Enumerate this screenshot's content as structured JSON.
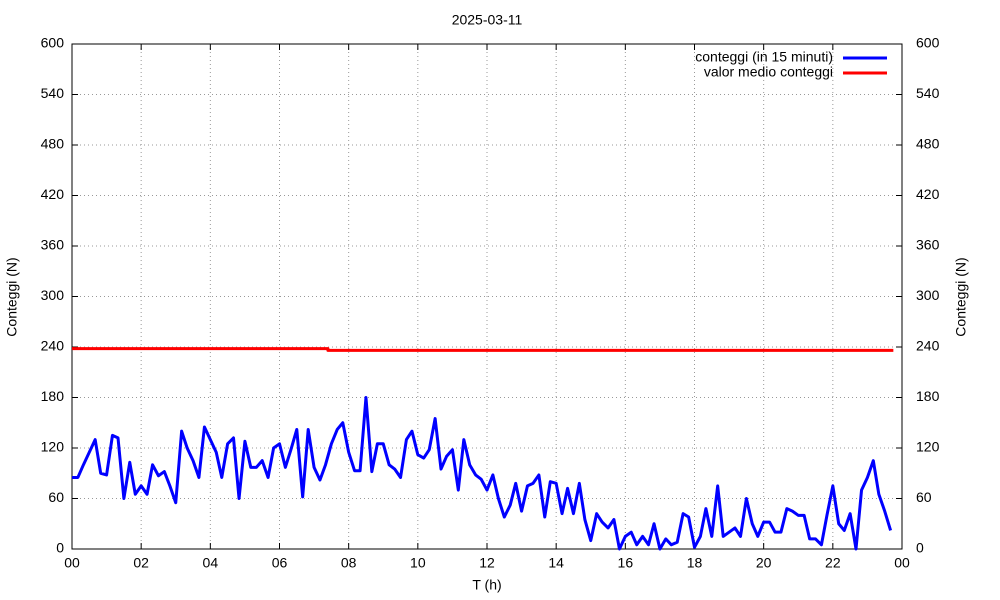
{
  "chart_data": {
    "type": "line",
    "title": "2025-03-11",
    "x_label": "T (h)",
    "y_label": "Conteggi (N)",
    "y2_label": "Conteggi (N)",
    "xlim": [
      0,
      24
    ],
    "xticks": [
      {
        "value": 0,
        "label": "00"
      },
      {
        "value": 2,
        "label": "02"
      },
      {
        "value": 4,
        "label": "04"
      },
      {
        "value": 6,
        "label": "06"
      },
      {
        "value": 8,
        "label": "08"
      },
      10,
      12,
      14,
      16,
      18,
      20,
      22,
      {
        "value": 24,
        "label": "00"
      }
    ],
    "ylim": [
      0,
      600
    ],
    "yticks": [
      0,
      60,
      120,
      180,
      240,
      300,
      360,
      420,
      480,
      540,
      600
    ],
    "y2lim": [
      0,
      600
    ],
    "y2ticks": [
      0,
      60,
      120,
      180,
      240,
      300,
      360,
      420,
      480,
      540,
      600
    ],
    "grid": true,
    "legend": "top-right",
    "series": [
      {
        "name": "conteggi (in 15 minuti)",
        "color": "#0000ff",
        "x": [
          0,
          0.17,
          0.33,
          0.5,
          0.67,
          0.83,
          1,
          1.17,
          1.33,
          1.5,
          1.67,
          1.83,
          2,
          2.17,
          2.33,
          2.5,
          2.67,
          2.83,
          3,
          3.17,
          3.33,
          3.5,
          3.67,
          3.83,
          4,
          4.17,
          4.33,
          4.5,
          4.67,
          4.83,
          5,
          5.17,
          5.33,
          5.5,
          5.67,
          5.83,
          6,
          6.17,
          6.33,
          6.5,
          6.67,
          6.83,
          7,
          7.17,
          7.33,
          7.5,
          7.67,
          7.83,
          8,
          8.17,
          8.33,
          8.5,
          8.67,
          8.83,
          9,
          9.17,
          9.33,
          9.5,
          9.67,
          9.83,
          10,
          10.17,
          10.33,
          10.5,
          10.67,
          10.83,
          11,
          11.17,
          11.33,
          11.5,
          11.67,
          11.83,
          12,
          12.17,
          12.33,
          12.5,
          12.67,
          12.83,
          13,
          13.17,
          13.33,
          13.5,
          13.67,
          13.83,
          14,
          14.17,
          14.33,
          14.5,
          14.67,
          14.83,
          15,
          15.17,
          15.33,
          15.5,
          15.67,
          15.83,
          16,
          16.17,
          16.33,
          16.5,
          16.67,
          16.83,
          17,
          17.17,
          17.33,
          17.5,
          17.67,
          17.83,
          18,
          18.17,
          18.33,
          18.5,
          18.67,
          18.83,
          19,
          19.17,
          19.33,
          19.5,
          19.67,
          19.83,
          20,
          20.17,
          20.33,
          20.5,
          20.67,
          20.83,
          21,
          21.17,
          21.33,
          21.5,
          21.67,
          21.83,
          22,
          22.17,
          22.33,
          22.5,
          22.67,
          22.83,
          23,
          23.17,
          23.33,
          23.5,
          23.67
        ],
        "values": [
          85,
          85,
          100,
          115,
          130,
          90,
          88,
          135,
          132,
          60,
          103,
          65,
          75,
          65,
          100,
          87,
          92,
          75,
          55,
          140,
          120,
          105,
          85,
          145,
          130,
          115,
          85,
          125,
          132,
          60,
          128,
          97,
          97,
          105,
          85,
          120,
          125,
          97,
          118,
          142,
          62,
          142,
          97,
          82,
          100,
          125,
          142,
          150,
          115,
          93,
          93,
          180,
          92,
          125,
          125,
          100,
          95,
          85,
          130,
          140,
          112,
          108,
          118,
          155,
          95,
          110,
          118,
          70,
          130,
          100,
          88,
          83,
          70,
          88,
          60,
          38,
          52,
          78,
          45,
          75,
          78,
          88,
          38,
          80,
          78,
          42,
          72,
          42,
          78,
          35,
          10,
          42,
          32,
          25,
          35,
          0,
          15,
          20,
          5,
          15,
          5,
          30,
          0,
          12,
          5,
          8,
          42,
          38,
          2,
          15,
          48,
          15,
          75,
          15,
          20,
          25,
          15,
          60,
          30,
          15,
          32,
          32,
          20,
          20,
          48,
          45,
          40,
          40,
          12,
          12,
          5,
          40,
          75,
          30,
          22,
          42,
          0,
          70,
          85,
          105,
          65,
          45,
          22
        ]
      },
      {
        "name": "valor medio conteggi",
        "color": "#ff0000",
        "x": [
          0,
          7.4,
          7.4,
          23.75
        ],
        "values": [
          238,
          238,
          236,
          236
        ]
      }
    ]
  }
}
